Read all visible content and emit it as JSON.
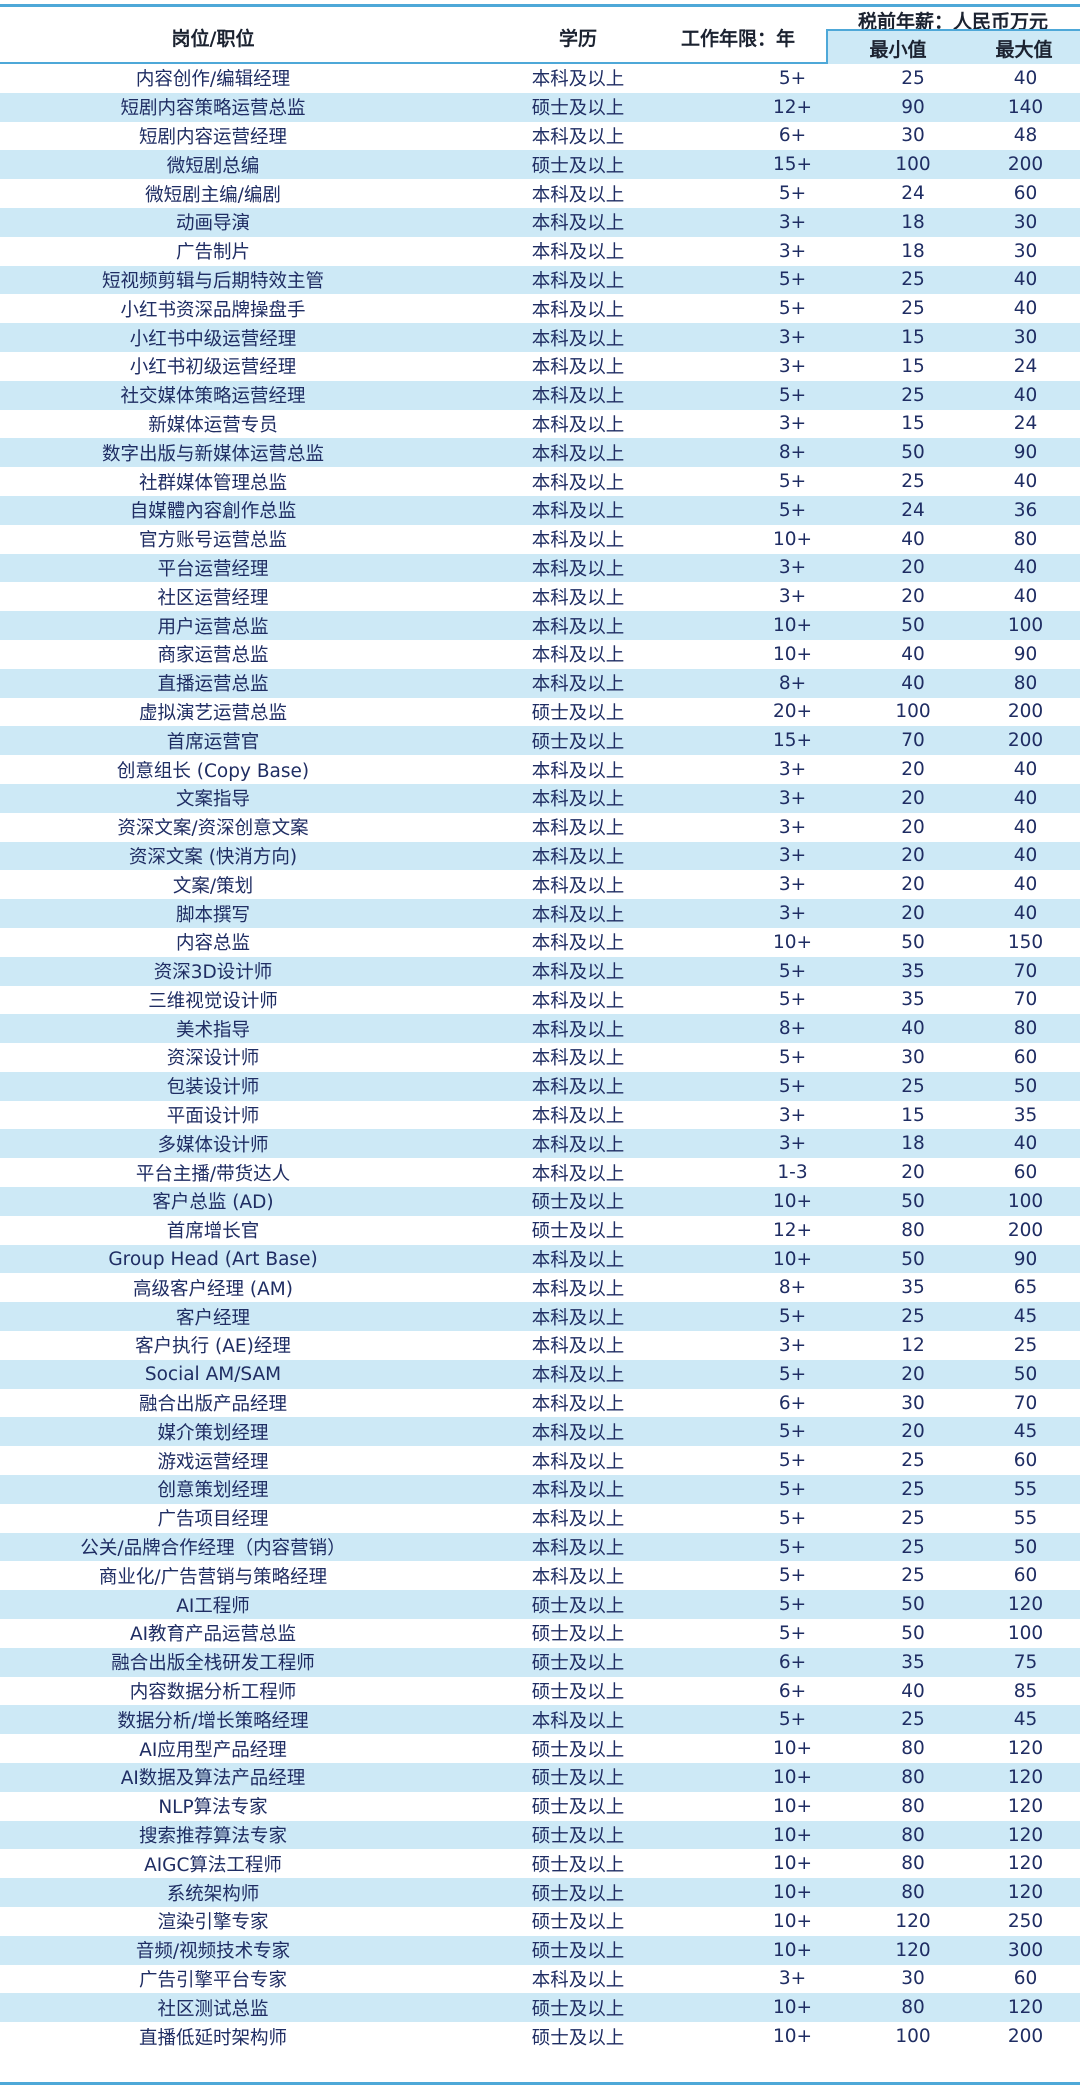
{
  "header": {
    "position": "岗位/职位",
    "education": "学历",
    "years": "工作年限：年",
    "salary": "税前年薪：人民币万元",
    "min": "最小值",
    "max": "最大值"
  },
  "colors": {
    "accent_line": "#4ea8d8",
    "stripe": "#cde9f6",
    "text": "#1f2d63"
  },
  "rows": [
    [
      "内容创作/编辑经理",
      "本科及以上",
      "5+",
      "25",
      "40"
    ],
    [
      "短剧内容策略运营总监",
      "硕士及以上",
      "12+",
      "90",
      "140"
    ],
    [
      "短剧内容运营经理",
      "本科及以上",
      "6+",
      "30",
      "48"
    ],
    [
      "微短剧总编",
      "硕士及以上",
      "15+",
      "100",
      "200"
    ],
    [
      "微短剧主编/编剧",
      "本科及以上",
      "5+",
      "24",
      "60"
    ],
    [
      "动画导演",
      "本科及以上",
      "3+",
      "18",
      "30"
    ],
    [
      "广告制片",
      "本科及以上",
      "3+",
      "18",
      "30"
    ],
    [
      "短视频剪辑与后期特效主管",
      "本科及以上",
      "5+",
      "25",
      "40"
    ],
    [
      "小红书资深品牌操盘手",
      "本科及以上",
      "5+",
      "25",
      "40"
    ],
    [
      "小红书中级运营经理",
      "本科及以上",
      "3+",
      "15",
      "30"
    ],
    [
      "小红书初级运营经理",
      "本科及以上",
      "3+",
      "15",
      "24"
    ],
    [
      "社交媒体策略运营经理",
      "本科及以上",
      "5+",
      "25",
      "40"
    ],
    [
      "新媒体运营专员",
      "本科及以上",
      "3+",
      "15",
      "24"
    ],
    [
      "数字出版与新媒体运营总监",
      "本科及以上",
      "8+",
      "50",
      "90"
    ],
    [
      "社群媒体管理总监",
      "本科及以上",
      "5+",
      "25",
      "40"
    ],
    [
      "自媒體內容創作总监",
      "本科及以上",
      "5+",
      "24",
      "36"
    ],
    [
      "官方账号运营总监",
      "本科及以上",
      "10+",
      "40",
      "80"
    ],
    [
      "平台运营经理",
      "本科及以上",
      "3+",
      "20",
      "40"
    ],
    [
      "社区运营经理",
      "本科及以上",
      "3+",
      "20",
      "40"
    ],
    [
      "用户运营总监",
      "本科及以上",
      "10+",
      "50",
      "100"
    ],
    [
      "商家运营总监",
      "本科及以上",
      "10+",
      "40",
      "90"
    ],
    [
      "直播运营总监",
      "本科及以上",
      "8+",
      "40",
      "80"
    ],
    [
      "虚拟演艺运营总监",
      "硕士及以上",
      "20+",
      "100",
      "200"
    ],
    [
      "首席运营官",
      "硕士及以上",
      "15+",
      "70",
      "200"
    ],
    [
      "创意组长 (Copy Base)",
      "本科及以上",
      "3+",
      "20",
      "40"
    ],
    [
      "文案指导",
      "本科及以上",
      "3+",
      "20",
      "40"
    ],
    [
      "资深文案/资深创意文案",
      "本科及以上",
      "3+",
      "20",
      "40"
    ],
    [
      "资深文案 (快消方向)",
      "本科及以上",
      "3+",
      "20",
      "40"
    ],
    [
      "文案/策划",
      "本科及以上",
      "3+",
      "20",
      "40"
    ],
    [
      "脚本撰写",
      "本科及以上",
      "3+",
      "20",
      "40"
    ],
    [
      "内容总监",
      "本科及以上",
      "10+",
      "50",
      "150"
    ],
    [
      "资深3D设计师",
      "本科及以上",
      "5+",
      "35",
      "70"
    ],
    [
      "三维视觉设计师",
      "本科及以上",
      "5+",
      "35",
      "70"
    ],
    [
      "美术指导",
      "本科及以上",
      "8+",
      "40",
      "80"
    ],
    [
      "资深设计师",
      "本科及以上",
      "5+",
      "30",
      "60"
    ],
    [
      "包装设计师",
      "本科及以上",
      "5+",
      "25",
      "50"
    ],
    [
      "平面设计师",
      "本科及以上",
      "3+",
      "15",
      "35"
    ],
    [
      "多媒体设计师",
      "本科及以上",
      "3+",
      "18",
      "40"
    ],
    [
      "平台主播/带货达人",
      "本科及以上",
      "1-3",
      "20",
      "60"
    ],
    [
      "客户总监 (AD)",
      "硕士及以上",
      "10+",
      "50",
      "100"
    ],
    [
      "首席增长官",
      "硕士及以上",
      "12+",
      "80",
      "200"
    ],
    [
      "Group Head (Art Base)",
      "本科及以上",
      "10+",
      "50",
      "90"
    ],
    [
      "高级客户经理 (AM)",
      "本科及以上",
      "8+",
      "35",
      "65"
    ],
    [
      "客户经理",
      "本科及以上",
      "5+",
      "25",
      "45"
    ],
    [
      "客户执行 (AE)经理",
      "本科及以上",
      "3+",
      "12",
      "25"
    ],
    [
      "Social AM/SAM",
      "本科及以上",
      "5+",
      "20",
      "50"
    ],
    [
      "融合出版产品经理",
      "本科及以上",
      "6+",
      "30",
      "70"
    ],
    [
      "媒介策划经理",
      "本科及以上",
      "5+",
      "20",
      "45"
    ],
    [
      "游戏运营经理",
      "本科及以上",
      "5+",
      "25",
      "60"
    ],
    [
      "创意策划经理",
      "本科及以上",
      "5+",
      "25",
      "55"
    ],
    [
      "广告项目经理",
      "本科及以上",
      "5+",
      "25",
      "55"
    ],
    [
      "公关/品牌合作经理（内容营销）",
      "本科及以上",
      "5+",
      "25",
      "50"
    ],
    [
      "商业化/广告营销与策略经理",
      "本科及以上",
      "5+",
      "25",
      "60"
    ],
    [
      "AI工程师",
      "硕士及以上",
      "5+",
      "50",
      "120"
    ],
    [
      "AI教育产品运营总监",
      "硕士及以上",
      "5+",
      "50",
      "100"
    ],
    [
      "融合出版全栈研发工程师",
      "硕士及以上",
      "6+",
      "35",
      "75"
    ],
    [
      "内容数据分析工程师",
      "硕士及以上",
      "6+",
      "40",
      "85"
    ],
    [
      "数据分析/增长策略经理",
      "本科及以上",
      "5+",
      "25",
      "45"
    ],
    [
      "AI应用型产品经理",
      "硕士及以上",
      "10+",
      "80",
      "120"
    ],
    [
      "AI数据及算法产品经理",
      "硕士及以上",
      "10+",
      "80",
      "120"
    ],
    [
      "NLP算法专家",
      "硕士及以上",
      "10+",
      "80",
      "120"
    ],
    [
      "搜索推荐算法专家",
      "硕士及以上",
      "10+",
      "80",
      "120"
    ],
    [
      "AIGC算法工程师",
      "硕士及以上",
      "10+",
      "80",
      "120"
    ],
    [
      "系统架构师",
      "硕士及以上",
      "10+",
      "80",
      "120"
    ],
    [
      "渲染引擎专家",
      "硕士及以上",
      "10+",
      "120",
      "250"
    ],
    [
      "音频/视频技术专家",
      "硕士及以上",
      "10+",
      "120",
      "300"
    ],
    [
      "广告引擎平台专家",
      "本科及以上",
      "3+",
      "30",
      "60"
    ],
    [
      "社区测试总监",
      "硕士及以上",
      "10+",
      "80",
      "120"
    ],
    [
      "直播低延时架构师",
      "硕士及以上",
      "10+",
      "100",
      "200"
    ]
  ]
}
